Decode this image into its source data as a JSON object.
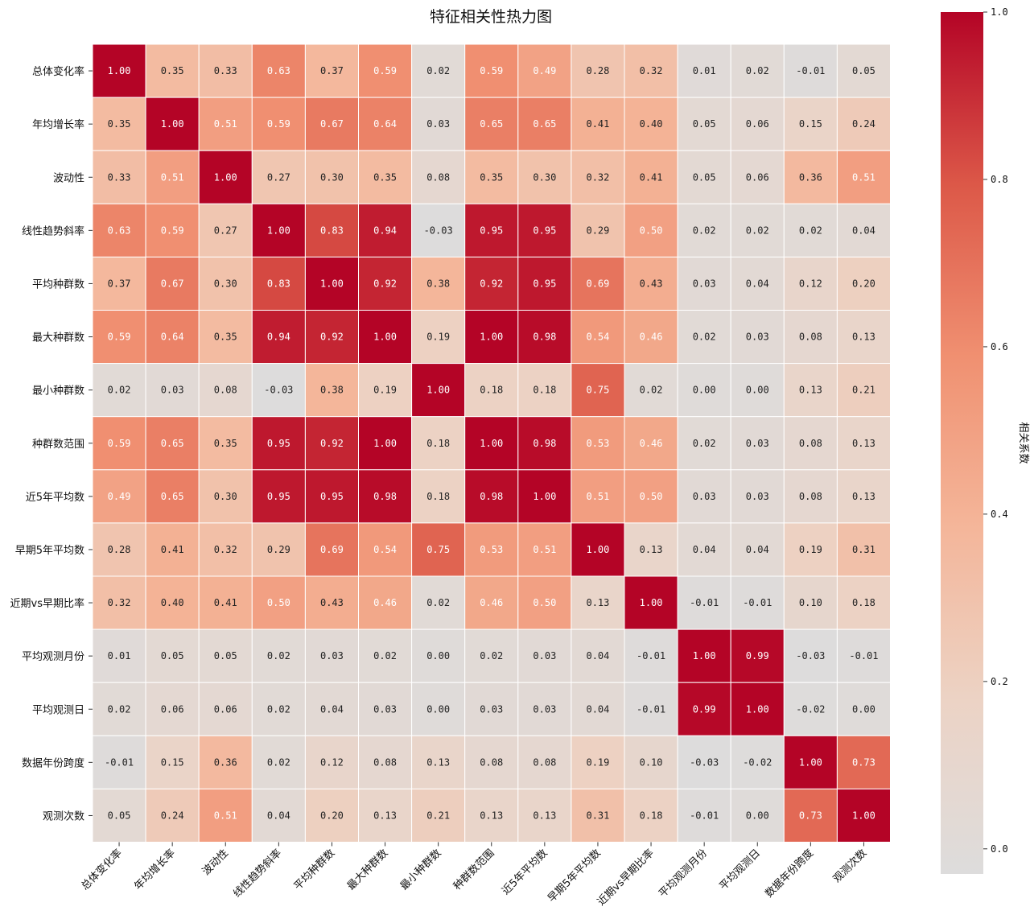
{
  "chart_data": {
    "type": "heatmap",
    "title": "特征相关性热力图",
    "x_labels": [
      "总体变化率",
      "年均增长率",
      "波动性",
      "线性趋势斜率",
      "平均种群数",
      "最大种群数",
      "最小种群数",
      "种群数范围",
      "近5年平均数",
      "早期5年平均数",
      "近期vs早期比率",
      "平均观测月份",
      "平均观测日",
      "数据年份跨度",
      "观测次数"
    ],
    "y_labels": [
      "总体变化率",
      "年均增长率",
      "波动性",
      "线性趋势斜率",
      "平均种群数",
      "最大种群数",
      "最小种群数",
      "种群数范围",
      "近5年平均数",
      "早期5年平均数",
      "近期vs早期比率",
      "平均观测月份",
      "平均观测日",
      "数据年份跨度",
      "观测次数"
    ],
    "values": [
      [
        1.0,
        0.35,
        0.33,
        0.63,
        0.37,
        0.59,
        0.02,
        0.59,
        0.49,
        0.28,
        0.32,
        0.01,
        0.02,
        -0.01,
        0.05
      ],
      [
        0.35,
        1.0,
        0.51,
        0.59,
        0.67,
        0.64,
        0.03,
        0.65,
        0.65,
        0.41,
        0.4,
        0.05,
        0.06,
        0.15,
        0.24
      ],
      [
        0.33,
        0.51,
        1.0,
        0.27,
        0.3,
        0.35,
        0.08,
        0.35,
        0.3,
        0.32,
        0.41,
        0.05,
        0.06,
        0.36,
        0.51
      ],
      [
        0.63,
        0.59,
        0.27,
        1.0,
        0.83,
        0.94,
        -0.03,
        0.95,
        0.95,
        0.29,
        0.5,
        0.02,
        0.02,
        0.02,
        0.04
      ],
      [
        0.37,
        0.67,
        0.3,
        0.83,
        1.0,
        0.92,
        0.38,
        0.92,
        0.95,
        0.69,
        0.43,
        0.03,
        0.04,
        0.12,
        0.2
      ],
      [
        0.59,
        0.64,
        0.35,
        0.94,
        0.92,
        1.0,
        0.19,
        1.0,
        0.98,
        0.54,
        0.46,
        0.02,
        0.03,
        0.08,
        0.13
      ],
      [
        0.02,
        0.03,
        0.08,
        -0.03,
        0.38,
        0.19,
        1.0,
        0.18,
        0.18,
        0.75,
        0.02,
        0.0,
        0.0,
        0.13,
        0.21
      ],
      [
        0.59,
        0.65,
        0.35,
        0.95,
        0.92,
        1.0,
        0.18,
        1.0,
        0.98,
        0.53,
        0.46,
        0.02,
        0.03,
        0.08,
        0.13
      ],
      [
        0.49,
        0.65,
        0.3,
        0.95,
        0.95,
        0.98,
        0.18,
        0.98,
        1.0,
        0.51,
        0.5,
        0.03,
        0.03,
        0.08,
        0.13
      ],
      [
        0.28,
        0.41,
        0.32,
        0.29,
        0.69,
        0.54,
        0.75,
        0.53,
        0.51,
        1.0,
        0.13,
        0.04,
        0.04,
        0.19,
        0.31
      ],
      [
        0.32,
        0.4,
        0.41,
        0.5,
        0.43,
        0.46,
        0.02,
        0.46,
        0.5,
        0.13,
        1.0,
        -0.01,
        -0.01,
        0.1,
        0.18
      ],
      [
        0.01,
        0.05,
        0.05,
        0.02,
        0.03,
        0.02,
        0.0,
        0.02,
        0.03,
        0.04,
        -0.01,
        1.0,
        0.99,
        -0.03,
        -0.01
      ],
      [
        0.02,
        0.06,
        0.06,
        0.02,
        0.04,
        0.03,
        0.0,
        0.03,
        0.03,
        0.04,
        -0.01,
        0.99,
        1.0,
        -0.02,
        0.0
      ],
      [
        -0.01,
        0.15,
        0.36,
        0.02,
        0.12,
        0.08,
        0.13,
        0.08,
        0.08,
        0.19,
        0.1,
        -0.03,
        -0.02,
        1.0,
        0.73
      ],
      [
        0.05,
        0.24,
        0.51,
        0.04,
        0.2,
        0.13,
        0.21,
        0.13,
        0.13,
        0.31,
        0.18,
        -0.01,
        0.0,
        0.73,
        1.0
      ]
    ],
    "value_range": [
      -0.03,
      1.0
    ],
    "colormap": "coolwarm",
    "colorbar": {
      "label": "相关系数",
      "ticks": [
        "0.0",
        "0.2",
        "0.4",
        "0.6",
        "0.8",
        "1.0"
      ],
      "tick_values": [
        0.0,
        0.2,
        0.4,
        0.6,
        0.8,
        1.0
      ]
    },
    "grid": true
  }
}
